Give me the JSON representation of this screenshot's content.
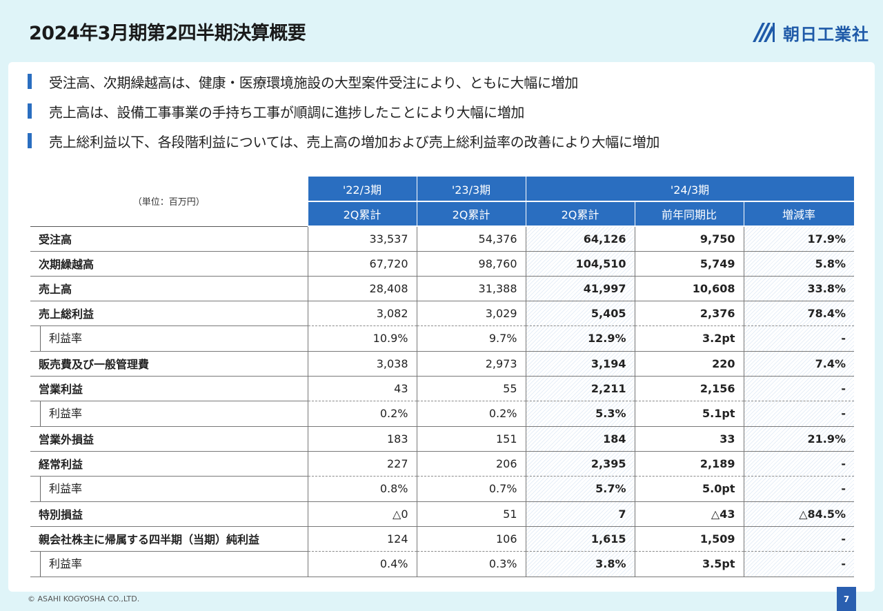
{
  "header": {
    "title": "2024年3月期第2四半期決算概要",
    "logo_text": "朝日工業社",
    "accent": "#2a6ec0"
  },
  "bullets": [
    "受注高、次期繰越高は、健康・医療環境施設の大型案件受注により、ともに大幅に増加",
    "売上高は、設備工事事業の手持ち工事が順調に進捗したことにより大幅に増加",
    "売上総利益以下、各段階利益については、売上高の増加および売上総利益率の改善により大幅に増加"
  ],
  "table": {
    "unit": "（単位：百万円）",
    "periods": [
      "'22/3期",
      "'23/3期",
      "'24/3期"
    ],
    "subheaders": [
      "2Q累計",
      "2Q累計",
      "2Q累計",
      "前年同期比",
      "増減率"
    ],
    "rows": [
      {
        "label": "受注高",
        "values": [
          "33,537",
          "54,376",
          "64,126",
          "9,750",
          "17.9%"
        ]
      },
      {
        "label": "次期繰越高",
        "values": [
          "67,720",
          "98,760",
          "104,510",
          "5,749",
          "5.8%"
        ]
      },
      {
        "label": "売上高",
        "values": [
          "28,408",
          "31,388",
          "41,997",
          "10,608",
          "33.8%"
        ]
      },
      {
        "label": "売上総利益",
        "values": [
          "3,082",
          "3,029",
          "5,405",
          "2,376",
          "78.4%"
        ]
      },
      {
        "label": "利益率",
        "values": [
          "10.9%",
          "9.7%",
          "12.9%",
          "3.2pt",
          "-"
        ]
      },
      {
        "label": "販売費及び一般管理費",
        "values": [
          "3,038",
          "2,973",
          "3,194",
          "220",
          "7.4%"
        ]
      },
      {
        "label": "営業利益",
        "values": [
          "43",
          "55",
          "2,211",
          "2,156",
          "-"
        ]
      },
      {
        "label": "利益率",
        "values": [
          "0.2%",
          "0.2%",
          "5.3%",
          "5.1pt",
          "-"
        ]
      },
      {
        "label": "営業外損益",
        "values": [
          "183",
          "151",
          "184",
          "33",
          "21.9%"
        ]
      },
      {
        "label": "経常利益",
        "values": [
          "227",
          "206",
          "2,395",
          "2,189",
          "-"
        ]
      },
      {
        "label": "利益率",
        "values": [
          "0.8%",
          "0.7%",
          "5.7%",
          "5.0pt",
          "-"
        ]
      },
      {
        "label": "特別損益",
        "values": [
          "△0",
          "51",
          "7",
          "△43",
          "△84.5%"
        ]
      },
      {
        "label": "親会社株主に帰属する四半期（当期）純利益",
        "values": [
          "124",
          "106",
          "1,615",
          "1,509",
          "-"
        ]
      },
      {
        "label": "利益率",
        "values": [
          "0.4%",
          "0.3%",
          "3.8%",
          "3.5pt",
          "-"
        ]
      }
    ]
  },
  "footer": {
    "copyright": "© ASAHI KOGYOSHA CO.,LTD.",
    "page_number": "7"
  }
}
